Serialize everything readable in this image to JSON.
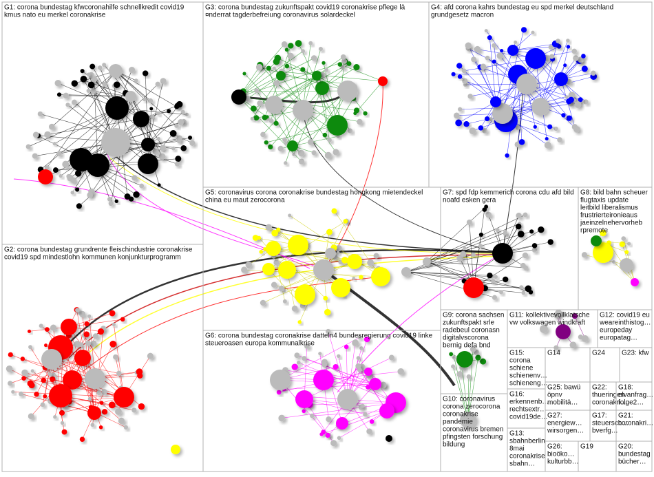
{
  "groups": [
    {
      "label": [
        "G1: corona bundestag kfwcoronahilfe schnellkredit covid19",
        "kmus nato eu merkel coronakrise"
      ]
    },
    {
      "label": [
        "G3: corona bundestag zukunftspakt covid19 coronakrise pflege lä",
        "¤nderrat tagderbefreiung coronavirus solardeckel"
      ]
    },
    {
      "label": [
        "G4: afd corona kahrs bundestag eu spd merkel deutschland",
        "grundgesetz macron"
      ]
    },
    {
      "label": [
        "G5: coronavirus corona coronakrise bundestag hongkong mietendeckel",
        "china eu maut zerocorona"
      ]
    },
    {
      "label": [
        "G7: spd fdp kemmerich corona cdu afd bild",
        "noafd esken gera"
      ]
    },
    {
      "label": [
        "G8: bild bahn scheuer",
        "flugtaxis update",
        "leitbild liberalismus",
        "frustrierteironieaus",
        "jaeinzelnehervorheb",
        "rpremote"
      ]
    },
    {
      "label": [
        "G2: corona bundestag grundrente fleischindustrie coronakrise",
        "covid19 spd mindestlohn kommunen konjunkturprogramm"
      ]
    },
    {
      "label": [
        "G6: corona bundestag coronakrise datteln4 bundesregierung covid19 linke",
        "steueroasen europa kommunalkrise"
      ]
    },
    {
      "label": [
        "G9: corona sachsen",
        "zukunftspakt srle",
        "radebeul coronasn",
        "digitalvscorona",
        "bernig defa bnd"
      ]
    },
    {
      "label": [
        "G11: kollektivevollklatsche",
        "vw volkswagen windkraft"
      ]
    },
    {
      "label": [
        "G12: covid19 eu",
        "weareinthistog…",
        "europeday",
        "europatag…"
      ]
    },
    {
      "label": [
        "G10: coronavirus",
        "corona zerocorona",
        "coronakrise",
        "pandemie",
        "coronavirus bremen",
        "pfingsten forschung",
        "bildung"
      ]
    },
    {
      "label": [
        "G15:",
        "corona",
        "schiene",
        "schienenv…",
        "schieneng…"
      ]
    },
    {
      "label": [
        "G14"
      ]
    },
    {
      "label": [
        "G24"
      ]
    },
    {
      "label": [
        "G23: kfw"
      ]
    },
    {
      "label": [
        "G16:",
        "erkennenb…",
        "rechtsextr…",
        "covid19de…"
      ]
    },
    {
      "label": [
        "G25: bawü",
        "öpnv",
        "mobilitä…"
      ]
    },
    {
      "label": [
        "G22:",
        "thueringen",
        "coronakri…"
      ]
    },
    {
      "label": [
        "G18:",
        "elvanfrag…",
        "folge2…"
      ]
    },
    {
      "label": [
        "G27:",
        "energiew…",
        "wirsorgen…"
      ]
    },
    {
      "label": [
        "G17:",
        "steuersch…",
        "bverfg…"
      ]
    },
    {
      "label": [
        "G21:",
        "coronakri…"
      ]
    },
    {
      "label": [
        "G13:",
        "sbahnberlin",
        "8mai",
        "coronakrise",
        "sbahn…"
      ]
    },
    {
      "label": [
        "G26:",
        "bioöko…",
        "kulturbb…"
      ]
    },
    {
      "label": [
        "G19"
      ]
    },
    {
      "label": [
        "G20:",
        "bundestag",
        "bücher…"
      ]
    }
  ]
}
